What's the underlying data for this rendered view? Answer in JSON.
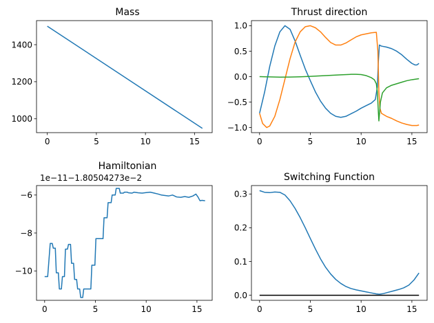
{
  "figure": {
    "background": "#ffffff"
  },
  "chart_data": [
    {
      "id": "mass",
      "type": "line",
      "title": "Mass",
      "xlim": [
        -1.1,
        16.8
      ],
      "ylim": [
        925,
        1530
      ],
      "xticks": [
        0,
        5,
        10,
        15
      ],
      "yticks": [
        1000,
        1200,
        1400
      ],
      "offset_text": "",
      "series": [
        {
          "name": "mass",
          "color": "#1f77b4",
          "x": [
            0,
            15.8
          ],
          "y": [
            1500,
            948
          ]
        }
      ]
    },
    {
      "id": "thrust",
      "type": "line",
      "title": "Thrust direction",
      "xlim": [
        -0.8,
        16.5
      ],
      "ylim": [
        -1.1,
        1.1
      ],
      "xticks": [
        0,
        5,
        10,
        15
      ],
      "yticks": [
        -1.0,
        -0.5,
        0.0,
        0.5,
        1.0
      ],
      "ytick_labels": [
        "−1.0",
        "−0.5",
        "0.0",
        "0.5",
        "1.0"
      ],
      "offset_text": "",
      "series": [
        {
          "name": "component-1",
          "color": "#1f77b4",
          "x": [
            0,
            0.5,
            1,
            1.5,
            2,
            2.5,
            3,
            3.5,
            4,
            4.5,
            5,
            5.5,
            6,
            6.5,
            7,
            7.5,
            8,
            8.5,
            9,
            9.5,
            10,
            10.5,
            11,
            11.4,
            11.6,
            11.7,
            11.8,
            12,
            12.5,
            13,
            13.5,
            14,
            14.5,
            15,
            15.3,
            15.5,
            15.7
          ],
          "y": [
            -0.72,
            -0.3,
            0.2,
            0.6,
            0.88,
            1.0,
            0.93,
            0.7,
            0.42,
            0.15,
            -0.08,
            -0.3,
            -0.48,
            -0.62,
            -0.72,
            -0.78,
            -0.8,
            -0.78,
            -0.73,
            -0.68,
            -0.62,
            -0.57,
            -0.52,
            -0.45,
            -0.2,
            0.3,
            0.62,
            0.6,
            0.58,
            0.55,
            0.5,
            0.43,
            0.34,
            0.26,
            0.23,
            0.23,
            0.26
          ]
        },
        {
          "name": "component-2",
          "color": "#ff7f0e",
          "x": [
            0,
            0.3,
            0.7,
            1,
            1.5,
            2,
            2.5,
            3,
            3.5,
            4,
            4.5,
            5,
            5.5,
            6,
            6.5,
            7,
            7.5,
            8,
            8.5,
            9,
            9.5,
            10,
            10.5,
            11,
            11.5,
            11.65,
            11.75,
            11.85,
            12,
            12.5,
            13,
            13.5,
            14,
            14.5,
            15,
            15.5,
            15.7
          ],
          "y": [
            -0.72,
            -0.92,
            -1.0,
            -0.97,
            -0.78,
            -0.45,
            -0.05,
            0.35,
            0.68,
            0.88,
            0.98,
            1.0,
            0.96,
            0.88,
            0.77,
            0.67,
            0.62,
            0.62,
            0.66,
            0.72,
            0.78,
            0.82,
            0.84,
            0.86,
            0.87,
            0.5,
            -0.3,
            -0.62,
            -0.72,
            -0.78,
            -0.82,
            -0.87,
            -0.91,
            -0.94,
            -0.96,
            -0.96,
            -0.95
          ]
        },
        {
          "name": "component-3",
          "color": "#2ca02c",
          "x": [
            0,
            1,
            2,
            3,
            4,
            5,
            6,
            7,
            8,
            9,
            9.5,
            10,
            10.5,
            11,
            11.3,
            11.5,
            11.6,
            11.7,
            11.75,
            11.8,
            11.9,
            12.1,
            12.5,
            13,
            13.5,
            14,
            14.5,
            15,
            15.7
          ],
          "y": [
            0.0,
            -0.005,
            -0.01,
            -0.008,
            -0.003,
            0.005,
            0.015,
            0.025,
            0.035,
            0.045,
            0.045,
            0.04,
            0.02,
            -0.02,
            -0.06,
            -0.14,
            -0.3,
            -0.7,
            -0.87,
            -0.75,
            -0.5,
            -0.32,
            -0.22,
            -0.17,
            -0.14,
            -0.11,
            -0.08,
            -0.06,
            -0.04
          ]
        }
      ]
    },
    {
      "id": "hamiltonian",
      "type": "line",
      "title": "Hamiltonian",
      "xlim": [
        -0.8,
        16.5
      ],
      "ylim": [
        -11.55,
        -5.5
      ],
      "xticks": [
        0,
        5,
        10,
        15
      ],
      "yticks": [
        -10,
        -8,
        -6
      ],
      "ytick_labels": [
        "−10",
        "−8",
        "−6"
      ],
      "offset_text": "1e−11−1.80504273e−2",
      "series": [
        {
          "name": "hamiltonian",
          "color": "#1f77b4",
          "x": [
            0,
            0.3,
            0.4,
            0.55,
            0.75,
            0.85,
            1.05,
            1.15,
            1.35,
            1.45,
            1.65,
            1.75,
            1.95,
            2.05,
            2.25,
            2.35,
            2.55,
            2.65,
            2.85,
            2.95,
            3.15,
            3.25,
            3.45,
            3.55,
            3.75,
            3.85,
            4.15,
            4.25,
            4.55,
            4.65,
            4.95,
            5.05,
            5.35,
            5.45,
            5.75,
            5.85,
            6.15,
            6.25,
            6.55,
            6.65,
            6.95,
            7.05,
            7.35,
            7.45,
            7.75,
            7.85,
            8.15,
            8.25,
            8.6,
            8.8,
            9.2,
            9.6,
            10.0,
            10.4,
            10.8,
            11.2,
            11.5,
            11.8,
            12.2,
            12.6,
            13.0,
            13.4,
            13.8,
            14.2,
            14.6,
            14.9,
            15.1,
            15.3,
            15.5,
            15.8
          ],
          "y": [
            -10.3,
            -10.3,
            -9.6,
            -8.55,
            -8.55,
            -8.8,
            -8.8,
            -10.1,
            -10.1,
            -10.95,
            -10.95,
            -10.3,
            -10.3,
            -8.85,
            -8.85,
            -8.6,
            -8.6,
            -9.6,
            -9.6,
            -10.45,
            -10.45,
            -10.95,
            -10.95,
            -11.4,
            -11.4,
            -10.95,
            -10.95,
            -10.95,
            -10.95,
            -9.7,
            -9.7,
            -8.3,
            -8.3,
            -8.3,
            -8.3,
            -7.2,
            -7.2,
            -6.4,
            -6.4,
            -6.0,
            -6.0,
            -5.65,
            -5.65,
            -5.9,
            -5.9,
            -5.85,
            -5.85,
            -5.88,
            -5.9,
            -5.85,
            -5.88,
            -5.9,
            -5.87,
            -5.85,
            -5.9,
            -5.95,
            -6.0,
            -6.02,
            -6.05,
            -6.0,
            -6.1,
            -6.12,
            -6.08,
            -6.12,
            -6.05,
            -5.95,
            -6.1,
            -6.3,
            -6.28,
            -6.3
          ]
        }
      ]
    },
    {
      "id": "switching",
      "type": "line",
      "title": "Switching Function",
      "xlim": [
        -0.8,
        16.5
      ],
      "ylim": [
        -0.015,
        0.325
      ],
      "xticks": [
        0,
        5,
        10,
        15
      ],
      "yticks": [
        0.0,
        0.1,
        0.2,
        0.3
      ],
      "ytick_labels": [
        "0.0",
        "0.1",
        "0.2",
        "0.3"
      ],
      "offset_text": "",
      "series": [
        {
          "name": "switching-function",
          "color": "#1f77b4",
          "x": [
            0,
            0.5,
            1,
            1.5,
            2,
            2.5,
            3,
            3.5,
            4,
            4.5,
            5,
            5.5,
            6,
            6.5,
            7,
            7.5,
            8,
            8.5,
            9,
            9.5,
            10,
            10.5,
            11,
            11.5,
            11.8,
            12.2,
            12.7,
            13.2,
            13.7,
            14.2,
            14.7,
            15.2,
            15.7
          ],
          "y": [
            0.31,
            0.305,
            0.304,
            0.306,
            0.305,
            0.297,
            0.28,
            0.257,
            0.23,
            0.2,
            0.168,
            0.137,
            0.108,
            0.083,
            0.063,
            0.047,
            0.035,
            0.026,
            0.02,
            0.016,
            0.013,
            0.01,
            0.007,
            0.004,
            0.003,
            0.005,
            0.009,
            0.013,
            0.017,
            0.022,
            0.03,
            0.045,
            0.066
          ]
        },
        {
          "name": "zero-line",
          "color": "#000000",
          "x": [
            0,
            15.7
          ],
          "y": [
            0,
            0
          ]
        }
      ]
    }
  ]
}
